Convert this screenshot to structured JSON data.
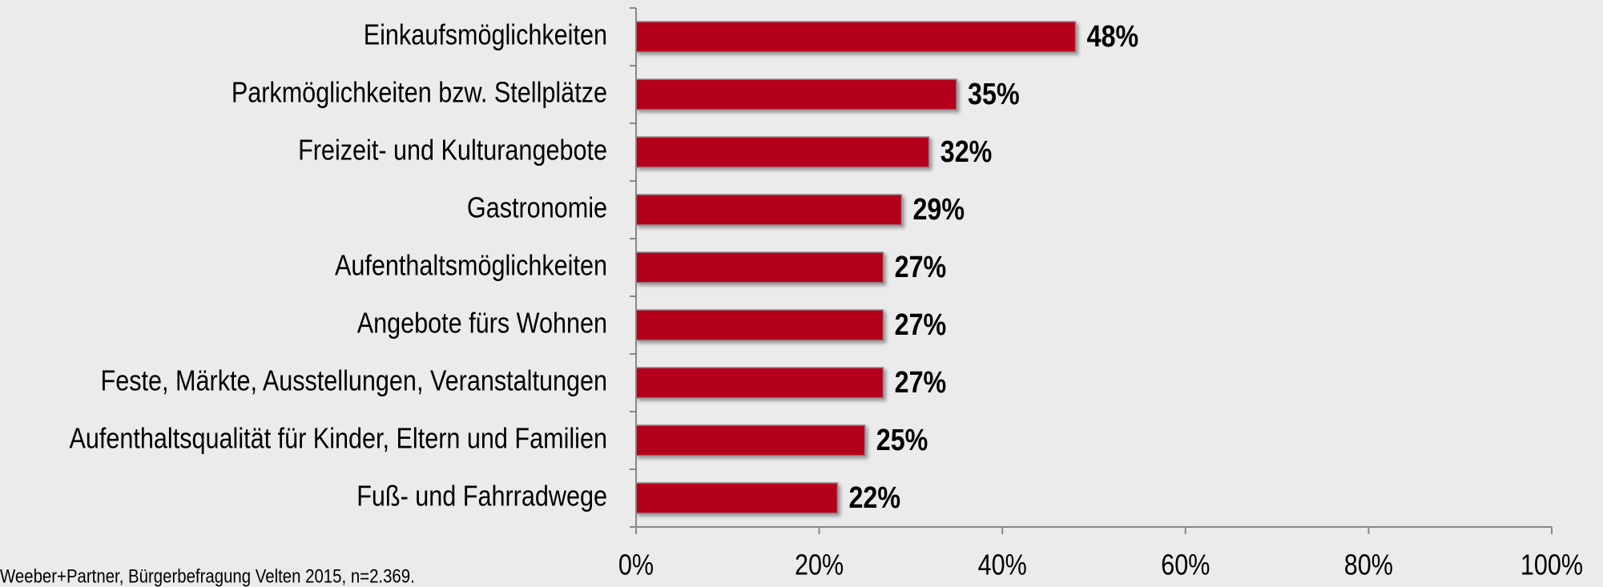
{
  "chart_data": {
    "type": "bar",
    "orientation": "horizontal",
    "categories": [
      "Einkaufsmöglichkeiten",
      "Parkmöglichkeiten bzw. Stellplätze",
      "Freizeit- und Kulturangebote",
      "Gastronomie",
      "Aufenthaltsmöglichkeiten",
      "Angebote fürs Wohnen",
      "Feste, Märkte, Ausstellungen, Veranstaltungen",
      "Aufenthaltsqualität für Kinder, Eltern und Familien",
      "Fuß- und Fahrradwege"
    ],
    "values": [
      48,
      35,
      32,
      29,
      27,
      27,
      27,
      25,
      22
    ],
    "value_labels": [
      "48%",
      "35%",
      "32%",
      "29%",
      "27%",
      "27%",
      "27%",
      "25%",
      "22%"
    ],
    "color": "#b5061c",
    "xlim": [
      0,
      100
    ],
    "xticks": [
      {
        "value": 0,
        "label": "0%"
      },
      {
        "value": 20,
        "label": "20%"
      },
      {
        "value": 40,
        "label": "40%"
      },
      {
        "value": 60,
        "label": "60%"
      },
      {
        "value": 80,
        "label": "80%"
      },
      {
        "value": 100,
        "label": "100%"
      }
    ],
    "grid": false,
    "source": "Weeber+Partner, Bürgerbefragung Velten 2015,  n=2.369."
  }
}
